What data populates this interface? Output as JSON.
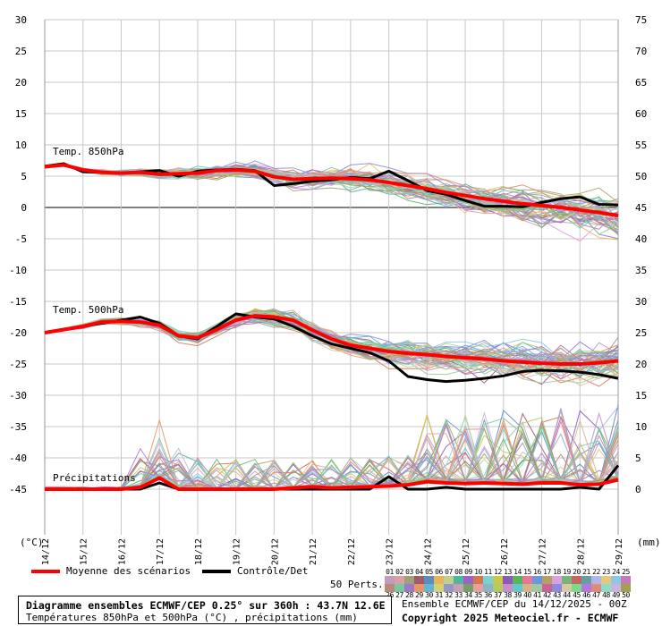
{
  "colors": {
    "background": "#ffffff",
    "grid": "#c8c8c8",
    "zero_line": "#808080",
    "mean": "#ff0000",
    "control": "#000000"
  },
  "chart_data": {
    "type": "line",
    "title": "Diagramme ensembles ECMWF/CEP 0.25° sur 360h : 43.7N 12.6E",
    "subtitle": "Températures 850hPa et 500hPa (°C) , précipitations (mm)",
    "left_axis": {
      "unit_label": "(°C)",
      "ylim": [
        -50,
        30
      ],
      "ticks": [
        30,
        25,
        20,
        15,
        10,
        5,
        0,
        -5,
        -10,
        -15,
        -20,
        -25,
        -30,
        -35,
        -40,
        -45
      ]
    },
    "right_axis": {
      "unit_label": "(mm)",
      "ticks": [
        75,
        70,
        65,
        60,
        55,
        50,
        45,
        40,
        35,
        30,
        25,
        20,
        15,
        10,
        5,
        0
      ]
    },
    "x_tick_labels": [
      "14/12",
      "15/12",
      "16/12",
      "17/12",
      "18/12",
      "19/12",
      "20/12",
      "21/12",
      "22/12",
      "23/12",
      "24/12",
      "25/12",
      "26/12",
      "27/12",
      "28/12",
      "29/12"
    ],
    "grid": true,
    "panels": [
      {
        "label": "Temp. 850hPa",
        "units": "°C"
      },
      {
        "label": "Temp. 500hPa",
        "units": "°C"
      },
      {
        "label": "Précipitations",
        "units": "mm"
      }
    ],
    "x_hours": [
      0,
      12,
      24,
      36,
      48,
      60,
      72,
      84,
      96,
      108,
      120,
      132,
      144,
      156,
      168,
      180,
      192,
      204,
      216,
      228,
      240,
      252,
      264,
      276,
      288,
      300,
      312,
      324,
      336,
      348,
      360
    ],
    "series": [
      {
        "name": "Moyenne des scénarios",
        "panel": "Temp. 850hPa",
        "color": "#ff0000",
        "values": [
          6.5,
          6.8,
          6.0,
          5.6,
          5.5,
          5.6,
          5.3,
          5.4,
          5.5,
          5.9,
          6.0,
          5.8,
          4.9,
          4.5,
          4.6,
          4.7,
          4.6,
          4.4,
          4.0,
          3.5,
          3.0,
          2.4,
          1.9,
          1.4,
          1.0,
          0.6,
          0.3,
          0.0,
          -0.4,
          -0.8,
          -1.3
        ]
      },
      {
        "name": "Contrôle/Det",
        "panel": "Temp. 850hPa",
        "color": "#000000",
        "values": [
          6.6,
          7.0,
          5.7,
          5.6,
          5.5,
          5.7,
          5.9,
          5.0,
          5.8,
          6.0,
          6.1,
          5.9,
          3.5,
          3.8,
          4.2,
          4.4,
          4.8,
          4.6,
          5.8,
          4.3,
          2.7,
          2.1,
          1.1,
          0.2,
          0.2,
          0.1,
          0.8,
          1.4,
          1.7,
          0.5,
          0.4
        ]
      },
      {
        "name": "Moyenne des scénarios",
        "panel": "Temp. 500hPa",
        "color": "#ff0000",
        "values": [
          -20.0,
          -19.5,
          -19.0,
          -18.3,
          -18.2,
          -18.3,
          -18.8,
          -20.5,
          -20.8,
          -19.5,
          -18.0,
          -17.3,
          -17.5,
          -18.0,
          -19.6,
          -21.0,
          -22.0,
          -22.5,
          -23.0,
          -23.3,
          -23.5,
          -23.8,
          -24.0,
          -24.2,
          -24.5,
          -24.7,
          -24.9,
          -25.0,
          -25.0,
          -24.8,
          -24.5
        ]
      },
      {
        "name": "Contrôle/Det",
        "panel": "Temp. 500hPa",
        "color": "#000000",
        "values": [
          -20.0,
          -19.5,
          -19.0,
          -18.5,
          -18.0,
          -17.5,
          -18.5,
          -20.5,
          -21.0,
          -19.0,
          -17.0,
          -17.5,
          -17.8,
          -19.0,
          -20.5,
          -21.8,
          -22.5,
          -23.2,
          -24.5,
          -27.0,
          -27.5,
          -27.8,
          -27.6,
          -27.3,
          -26.9,
          -26.2,
          -26.0,
          -26.1,
          -26.3,
          -26.7,
          -27.3
        ]
      },
      {
        "name": "Moyenne des scénarios",
        "panel": "Précipitations",
        "color": "#ff0000",
        "values": [
          0,
          0,
          0,
          0,
          0,
          0.3,
          1.8,
          0,
          0,
          0,
          0,
          0,
          0,
          0.2,
          0.4,
          0.2,
          0.3,
          0.4,
          0.5,
          0.7,
          1.2,
          1.0,
          0.9,
          1.0,
          0.9,
          0.8,
          1.0,
          1.0,
          0.7,
          0.8,
          1.5
        ]
      },
      {
        "name": "Contrôle/Det",
        "panel": "Précipitations",
        "color": "#000000",
        "values": [
          0,
          0,
          0,
          0,
          0,
          0,
          1.0,
          0,
          0,
          0,
          0,
          0,
          0,
          0,
          0,
          0,
          0,
          0,
          2.0,
          0,
          0,
          0.3,
          0,
          0,
          0,
          0,
          0,
          0,
          0.3,
          0,
          3.8
        ]
      }
    ],
    "legend": {
      "mean_label": "Moyenne des scénarios",
      "control_label": "Contrôle/Det",
      "perturbations_label": "50 Perts.",
      "perturbation_ids_top": [
        "01",
        "02",
        "03",
        "04",
        "05",
        "06",
        "07",
        "08",
        "09",
        "10",
        "11",
        "12",
        "13",
        "14",
        "15",
        "16",
        "17",
        "18",
        "19",
        "20",
        "21",
        "22",
        "23",
        "24",
        "25"
      ],
      "perturbation_ids_bottom": [
        "26",
        "27",
        "28",
        "29",
        "30",
        "31",
        "32",
        "33",
        "34",
        "35",
        "36",
        "37",
        "38",
        "39",
        "40",
        "41",
        "42",
        "43",
        "44",
        "45",
        "46",
        "47",
        "48",
        "49",
        "50"
      ],
      "perturbation_colors": [
        "#c39bbd",
        "#d8a0a0",
        "#9ea07a",
        "#a25a6a",
        "#5a8cbe",
        "#e6b45a",
        "#bed28c",
        "#50b4a0",
        "#9c64c8",
        "#d27850",
        "#7ad2d2",
        "#c8c850",
        "#8c5ab4",
        "#5ab45a",
        "#e67896",
        "#6e96dc",
        "#b4a064",
        "#dca0dc",
        "#78b478",
        "#c86464",
        "#64a0a0",
        "#b4b4e6",
        "#e6c878",
        "#8cc8e6",
        "#c878b4",
        "#b48c78",
        "#78c8a0",
        "#a078c8",
        "#e69664",
        "#64b4d2",
        "#d2d278",
        "#9696c8",
        "#c8a0b4",
        "#78a064",
        "#e6a0a0",
        "#8cb4c8",
        "#b4c864",
        "#c88cc8",
        "#64c8c8",
        "#d2b48c",
        "#a0c8a0",
        "#c86496",
        "#8c8cdc",
        "#dcc8a0",
        "#78dc8c",
        "#b478dc",
        "#dc8c78",
        "#8cdcc8",
        "#c8b4dc",
        "#a0a050"
      ]
    },
    "footer": {
      "run_info": "Ensemble ECMWF/CEP du 14/12/2025 - 00Z",
      "copyright": "Copyright 2025 Meteociel.fr - ECMWF"
    }
  }
}
